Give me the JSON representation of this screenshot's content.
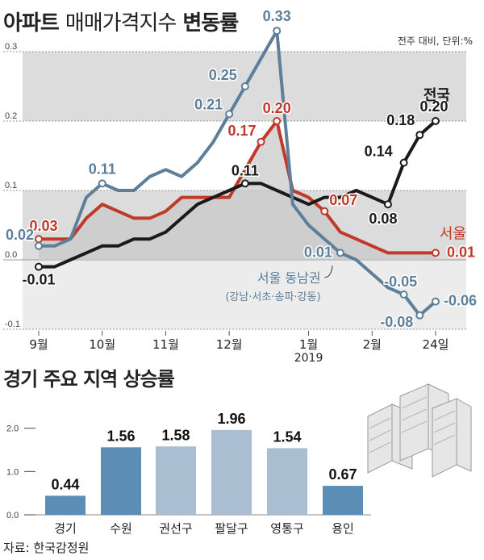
{
  "title_bold": "아파트",
  "title_normal": "매매가격지수",
  "title_bold2": "변동률",
  "unit_note": "전주 대비, 단위:%",
  "subtitle": "경기 주요 지역 상승률",
  "source": "자료: 한국감정원",
  "colors": {
    "national": "#1a1a1a",
    "seoul": "#c0392b",
    "gangnam": "#5d7f99",
    "bar_dark": "#5b8db5",
    "bar_light": "#a9bfd1",
    "band": "#dcdcdc",
    "area": "#c9c9c9"
  },
  "chart_data": [
    {
      "type": "line",
      "x_ticks": [
        "9월",
        "10월",
        "11월",
        "12월",
        "1월",
        "2월",
        "24일"
      ],
      "x_tick_sub": "2019",
      "y_ticks": [
        "0.3",
        "0.2",
        "0.1",
        "0.0",
        "-0.1"
      ],
      "ylim": [
        -0.1,
        0.3
      ],
      "series": [
        {
          "name": "전국",
          "color": "#1a1a1a",
          "values": [
            -0.01,
            -0.01,
            0.0,
            0.01,
            0.02,
            0.02,
            0.03,
            0.03,
            0.04,
            0.06,
            0.08,
            0.09,
            0.1,
            0.11,
            0.11,
            0.1,
            0.09,
            0.08,
            0.09,
            0.09,
            0.1,
            0.09,
            0.08,
            0.14,
            0.18,
            0.2
          ],
          "labels": [
            {
              "i": 0,
              "text": "-0.01"
            },
            {
              "i": 13,
              "text": "0.11"
            },
            {
              "i": 22,
              "text": "0.08"
            },
            {
              "i": 23,
              "text": "0.14"
            },
            {
              "i": 24,
              "text": "0.18"
            },
            {
              "i": 25,
              "text": "0.20"
            }
          ]
        },
        {
          "name": "서울",
          "color": "#c0392b",
          "values": [
            0.03,
            0.03,
            0.03,
            0.06,
            0.08,
            0.07,
            0.06,
            0.06,
            0.07,
            0.09,
            0.09,
            0.09,
            0.09,
            0.13,
            0.17,
            0.2,
            0.1,
            0.09,
            0.07,
            0.04,
            0.03,
            0.02,
            0.01,
            0.01,
            0.01,
            0.01
          ],
          "labels": [
            {
              "i": 0,
              "text": "0.03"
            },
            {
              "i": 14,
              "text": "0.17"
            },
            {
              "i": 15,
              "text": "0.20"
            },
            {
              "i": 18,
              "text": "0.07"
            },
            {
              "i": 25,
              "text": "0.01"
            }
          ]
        },
        {
          "name": "서울 동남권",
          "sub_name": "(강남·서초·송파·강동)",
          "color": "#5d7f99",
          "values": [
            0.02,
            0.02,
            0.03,
            0.09,
            0.11,
            0.1,
            0.1,
            0.12,
            0.13,
            0.12,
            0.14,
            0.17,
            0.21,
            0.25,
            0.29,
            0.33,
            0.08,
            0.05,
            0.03,
            0.01,
            0.0,
            -0.02,
            -0.04,
            -0.05,
            -0.08,
            -0.06
          ],
          "labels": [
            {
              "i": 0,
              "text": "0.02"
            },
            {
              "i": 4,
              "text": "0.11"
            },
            {
              "i": 12,
              "text": "0.21"
            },
            {
              "i": 13,
              "text": "0.25"
            },
            {
              "i": 15,
              "text": "0.33"
            },
            {
              "i": 19,
              "text": "0.01"
            },
            {
              "i": 23,
              "text": "-0.05"
            },
            {
              "i": 24,
              "text": "-0.08"
            },
            {
              "i": 25,
              "text": "-0.06"
            }
          ]
        }
      ]
    },
    {
      "type": "bar",
      "categories": [
        "경기",
        "수원",
        "권선구",
        "팔달구",
        "영통구",
        "용인"
      ],
      "values": [
        0.44,
        1.56,
        1.58,
        1.96,
        1.54,
        0.67
      ],
      "value_labels": [
        "0.44",
        "1.56",
        "1.58",
        "1.96",
        "1.54",
        "0.67"
      ],
      "y_ticks": [
        "2.0",
        "1.0",
        "0.0"
      ],
      "ylim": [
        0,
        2.2
      ]
    }
  ]
}
